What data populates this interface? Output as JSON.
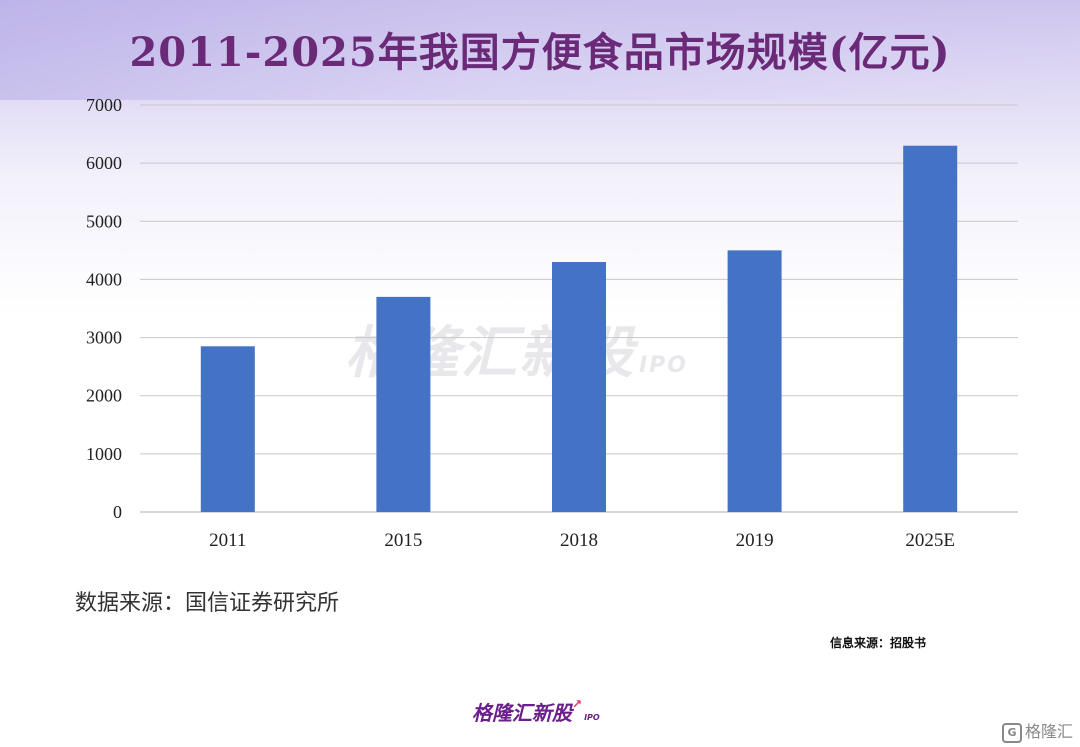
{
  "title": "2011-2025年我国方便食品市场规模(亿元)",
  "source_text": "数据来源：国信证券研究所",
  "info_source": "信息来源：招股书",
  "brand": {
    "name": "格隆汇新股",
    "suffix": "IPO"
  },
  "watermark": {
    "name": "格隆汇新股",
    "suffix": "IPO"
  },
  "corner_logo": {
    "mark": "G",
    "name": "格隆汇"
  },
  "chart_data": {
    "type": "bar",
    "title": "2011-2025年我国方便食品市场规模(亿元)",
    "xlabel": "",
    "ylabel": "",
    "categories": [
      "2011",
      "2015",
      "2018",
      "2019",
      "2025E"
    ],
    "values": [
      2850,
      3700,
      4300,
      4500,
      6300
    ],
    "ylim": [
      0,
      7000
    ],
    "yticks": [
      0,
      1000,
      2000,
      3000,
      4000,
      5000,
      6000,
      7000
    ],
    "grid": true,
    "bar_color": "#4472c4",
    "grid_color": "#c8c8c8"
  }
}
